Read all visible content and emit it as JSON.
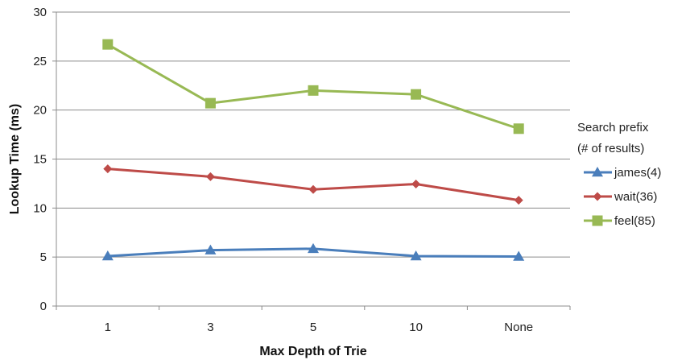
{
  "chart_data": {
    "type": "line",
    "title": "",
    "xlabel": "Max Depth of Trie",
    "ylabel": "Lookup Time (ms)",
    "categories": [
      "1",
      "3",
      "5",
      "10",
      "None"
    ],
    "ylim": [
      0,
      30
    ],
    "yticks": [
      0,
      5,
      10,
      15,
      20,
      25,
      30
    ],
    "grid": "horizontal",
    "legend": {
      "title_lines": [
        "Search prefix",
        "(# of results)"
      ],
      "placement": "right"
    },
    "series": [
      {
        "name": "james(4)",
        "values": [
          5.1,
          5.7,
          5.85,
          5.1,
          5.05
        ],
        "color": "#4a7ebb",
        "marker": "triangle"
      },
      {
        "name": "wait(36)",
        "values": [
          14.0,
          13.2,
          11.9,
          12.45,
          10.8
        ],
        "color": "#be4b48",
        "marker": "diamond"
      },
      {
        "name": "feel(85)",
        "values": [
          26.7,
          20.7,
          22.0,
          21.6,
          18.1
        ],
        "color": "#98b954",
        "marker": "square"
      }
    ]
  }
}
